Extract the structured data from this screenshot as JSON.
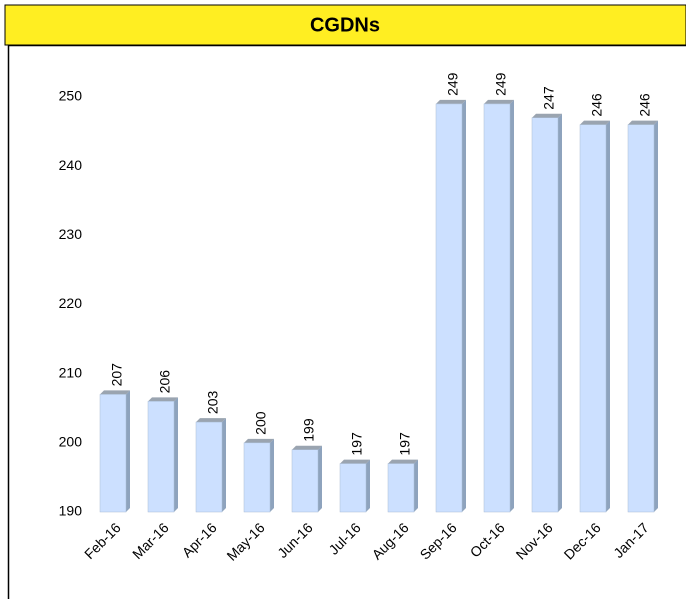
{
  "chart_data": {
    "type": "bar",
    "title": "CGDNs",
    "categories": [
      "Feb-16",
      "Mar-16",
      "Apr-16",
      "May-16",
      "Jun-16",
      "Jul-16",
      "Aug-16",
      "Sep-16",
      "Oct-16",
      "Nov-16",
      "Dec-16",
      "Jan-17"
    ],
    "values": [
      207,
      206,
      203,
      200,
      199,
      197,
      197,
      249,
      249,
      247,
      246,
      246
    ],
    "color": "#cce0ff",
    "ylim": [
      190,
      250
    ],
    "yticks": [
      190,
      200,
      210,
      220,
      230,
      240,
      250
    ],
    "grid": false
  }
}
